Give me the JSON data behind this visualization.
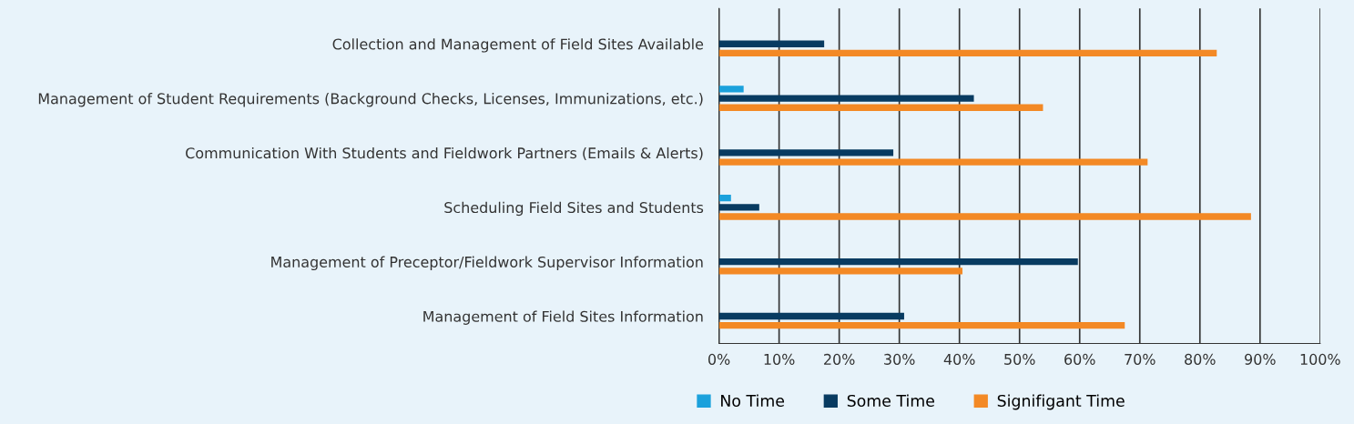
{
  "chart_data": {
    "type": "bar",
    "orientation": "horizontal",
    "categories": [
      "Collection and Management of Field Sites Available",
      "Management of Student Requirements (Background Checks, Licenses, Immunizations, etc.)",
      "Communication With Students and Fieldwork Partners (Emails & Alerts)",
      "Scheduling Field Sites and Students",
      "Management of Preceptor/Fieldwork Supervisor Information",
      "Management of Field Sites Information"
    ],
    "series": [
      {
        "name": "No Time",
        "color": "#1ba1dc",
        "values": [
          null,
          4.1,
          null,
          2.0,
          null,
          null
        ]
      },
      {
        "name": "Some Time",
        "color": "#083b61",
        "values": [
          17.5,
          42.4,
          29.0,
          6.7,
          59.7,
          30.8
        ]
      },
      {
        "name": "Signifigant Time",
        "color": "#f38925",
        "values": [
          82.8,
          53.9,
          71.3,
          88.5,
          40.5,
          67.5
        ]
      }
    ],
    "xlim": [
      0,
      100
    ],
    "xticks": [
      {
        "value": 0,
        "label": "0%"
      },
      {
        "value": 10,
        "label": "10%"
      },
      {
        "value": 20,
        "label": "20%"
      },
      {
        "value": 30,
        "label": "30%"
      },
      {
        "value": 40,
        "label": "40%"
      },
      {
        "value": 50,
        "label": "50%"
      },
      {
        "value": 60,
        "label": "60%"
      },
      {
        "value": 70,
        "label": "70%"
      },
      {
        "value": 80,
        "label": "80%"
      },
      {
        "value": 90,
        "label": "90%"
      },
      {
        "value": 100,
        "label": "100%"
      }
    ],
    "grid": "x",
    "legend": "bottom"
  }
}
